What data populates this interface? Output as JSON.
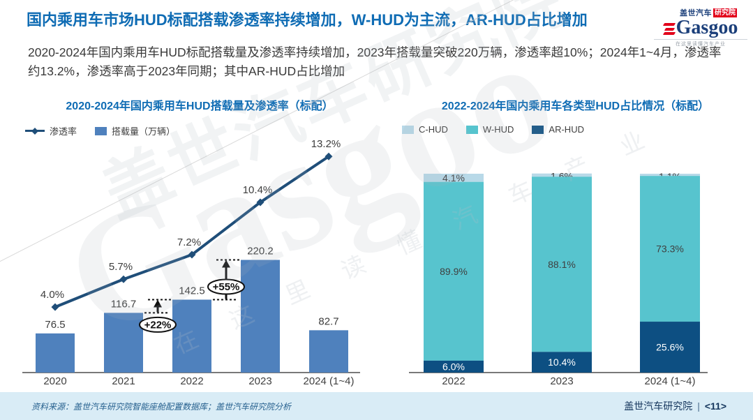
{
  "header": {
    "title": "国内乘用车市场HUD标配搭载渗透率持续增加，W-HUD为主流，AR-HUD占比增加",
    "subtitle": "2020-2024年国内乘用车HUD标配搭载量及渗透率持续增加，2023年搭载量突破220万辆，渗透率超10%；2024年1~4月，渗透率约13.2%，渗透率高于2023年同期；其中AR-HUD占比增加",
    "logo": {
      "brand_cn": "盖世汽车",
      "brand_cn_badge": "研究院",
      "brand_en": "Gasgoo",
      "tagline": "在这里读懂汽车产业"
    }
  },
  "watermark": {
    "text_cn": "盖世汽车研究院",
    "text_en": "Gasgoo",
    "tagline": "在 这 里 读 懂 汽 车 产 业"
  },
  "chart_data": [
    {
      "type": "bar",
      "subtype": "bar+line combo, line on secondary percent axis",
      "title": "2020-2024年国内乘用车HUD搭载量及渗透率（标配）",
      "categories": [
        "2020",
        "2021",
        "2022",
        "2023",
        "2024 (1~4)"
      ],
      "series": [
        {
          "name": "搭载量（万辆）",
          "type": "bar",
          "values": [
            76.5,
            116.7,
            142.5,
            220.2,
            82.7
          ],
          "labels": [
            "76.5",
            "116.7",
            "142.5",
            "220.2",
            "82.7"
          ],
          "color": "#4f81bd",
          "axis_max": 480
        },
        {
          "name": "渗透率",
          "type": "line",
          "values": [
            4.0,
            5.7,
            7.2,
            10.4,
            13.2
          ],
          "labels": [
            "4.0%",
            "5.7%",
            "7.2%",
            "10.4%",
            "13.2%"
          ],
          "color": "#1f4e79",
          "axis_max": 15
        }
      ],
      "annotations": [
        {
          "label": "+22%",
          "from_index": 1,
          "to_index": 2
        },
        {
          "label": "+55%",
          "from_index": 2,
          "to_index": 3
        }
      ],
      "legend_position": "top-left",
      "grid": false
    },
    {
      "type": "bar",
      "subtype": "100% stacked bar",
      "title": "2022-2024年国内乘用车各类型HUD占比情况（标配）",
      "categories": [
        "2022",
        "2023",
        "2024 (1~4)"
      ],
      "unit": "%",
      "ylim": [
        0,
        100
      ],
      "series": [
        {
          "name": "C-HUD",
          "values": [
            4.1,
            1.6,
            1.1
          ],
          "labels": [
            "4.1%",
            "1.6%",
            "1.1%"
          ],
          "color": "#b8d9e8",
          "label_color": "#3f3f3f"
        },
        {
          "name": "W-HUD",
          "values": [
            89.9,
            88.1,
            73.3
          ],
          "labels": [
            "89.9%",
            "88.1%",
            "73.3%"
          ],
          "color": "#57c4ce",
          "label_color": "#3f3f3f"
        },
        {
          "name": "AR-HUD",
          "values": [
            6.0,
            10.4,
            25.6
          ],
          "labels": [
            "6.0%",
            "10.4%",
            "25.6%"
          ],
          "color": "#0d4f82",
          "label_color": "#ffffff"
        }
      ],
      "legend_position": "top-left",
      "grid": false
    }
  ],
  "footer": {
    "source": "资料来源：盖世汽车研究院智能座舱配置数据库；盖世汽车研究院分析",
    "brand": "盖世汽车研究院",
    "divider": "|",
    "page": "<11>"
  }
}
